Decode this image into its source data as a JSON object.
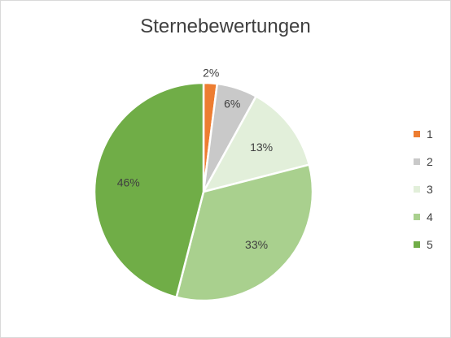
{
  "chart_data": {
    "type": "pie",
    "title": "Sternebewertungen",
    "categories": [
      "1",
      "2",
      "3",
      "4",
      "5"
    ],
    "values": [
      2,
      6,
      13,
      33,
      46
    ],
    "data_labels": [
      "2%",
      "6%",
      "13%",
      "33%",
      "46%"
    ],
    "colors": [
      "#ed7d31",
      "#c9c9c9",
      "#e2efda",
      "#a9d08e",
      "#70ad47"
    ],
    "legend": "right"
  }
}
